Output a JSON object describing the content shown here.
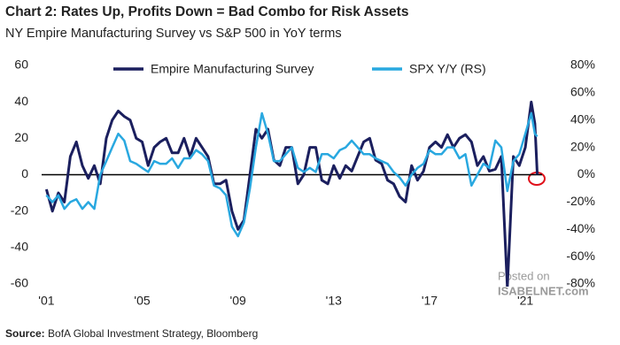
{
  "chart_data": {
    "type": "line",
    "title": "Chart 2: Rates Up, Profits Down = Bad Combo for Risk Assets",
    "subtitle": "NY Empire Manufacturing Survey vs S&P 500 in YoY terms",
    "source_label": "Source:",
    "source": "BofA Global Investment Strategy, Bloomberg",
    "watermark": [
      "Posted on",
      "ISABELNET.com"
    ],
    "legend": "top",
    "x": [
      2001,
      2001.25,
      2001.5,
      2001.75,
      2002,
      2002.25,
      2002.5,
      2002.75,
      2003,
      2003.25,
      2003.5,
      2003.75,
      2004,
      2004.25,
      2004.5,
      2004.75,
      2005,
      2005.25,
      2005.5,
      2005.75,
      2006,
      2006.25,
      2006.5,
      2006.75,
      2007,
      2007.25,
      2007.5,
      2007.75,
      2008,
      2008.25,
      2008.5,
      2008.75,
      2009,
      2009.25,
      2009.5,
      2009.75,
      2010,
      2010.25,
      2010.5,
      2010.75,
      2011,
      2011.25,
      2011.5,
      2011.75,
      2012,
      2012.25,
      2012.5,
      2012.75,
      2013,
      2013.25,
      2013.5,
      2013.75,
      2014,
      2014.25,
      2014.5,
      2014.75,
      2015,
      2015.25,
      2015.5,
      2015.75,
      2016,
      2016.25,
      2016.5,
      2016.75,
      2017,
      2017.25,
      2017.5,
      2017.75,
      2018,
      2018.25,
      2018.5,
      2018.75,
      2019,
      2019.25,
      2019.5,
      2019.75,
      2020,
      2020.25,
      2020.5,
      2020.75,
      2021,
      2021.25,
      2021.4,
      2021.5
    ],
    "xlim": [
      2000.8,
      2021.7
    ],
    "xticks": [
      {
        "value": 2001,
        "label": "'01"
      },
      {
        "value": 2005,
        "label": "'05"
      },
      {
        "value": 2009,
        "label": "'09"
      },
      {
        "value": 2013,
        "label": "'13"
      },
      {
        "value": 2017,
        "label": "'17"
      },
      {
        "value": 2021,
        "label": "'21"
      }
    ],
    "ylim": [
      -60,
      60
    ],
    "yticks": [
      -60,
      -40,
      -20,
      0,
      20,
      40,
      60
    ],
    "y2lim": [
      -80,
      80
    ],
    "y2ticks": [
      {
        "value": -80,
        "label": "-80%"
      },
      {
        "value": -60,
        "label": "-60%"
      },
      {
        "value": -40,
        "label": "-40%"
      },
      {
        "value": -20,
        "label": "-20%"
      },
      {
        "value": 0,
        "label": "0%"
      },
      {
        "value": 20,
        "label": "20%"
      },
      {
        "value": 40,
        "label": "40%"
      },
      {
        "value": 60,
        "label": "60%"
      },
      {
        "value": 80,
        "label": "80%"
      }
    ],
    "series": [
      {
        "name": "Empire Manufacturing Survey",
        "color": "#1b1f5e",
        "values": [
          -8,
          -20,
          -10,
          -15,
          10,
          18,
          5,
          -2,
          5,
          -5,
          20,
          30,
          35,
          32,
          30,
          20,
          18,
          5,
          15,
          18,
          20,
          12,
          12,
          20,
          10,
          20,
          15,
          10,
          -5,
          -5,
          -3,
          -20,
          -30,
          -25,
          0,
          25,
          20,
          25,
          8,
          5,
          15,
          15,
          -5,
          0,
          15,
          15,
          -3,
          -5,
          5,
          -2,
          5,
          2,
          10,
          18,
          20,
          8,
          6,
          -3,
          -5,
          -12,
          -15,
          5,
          -3,
          2,
          15,
          18,
          15,
          22,
          15,
          20,
          22,
          18,
          5,
          10,
          2,
          3,
          10,
          -62,
          10,
          5,
          15,
          40,
          28,
          0
        ]
      },
      {
        "name": "SPX Y/Y (RS)",
        "color": "#29a8e0",
        "axis": "y2",
        "values": [
          -15,
          -20,
          -15,
          -25,
          -20,
          -18,
          -25,
          -20,
          -25,
          0,
          10,
          20,
          30,
          25,
          10,
          8,
          5,
          2,
          10,
          8,
          8,
          12,
          5,
          12,
          12,
          18,
          15,
          10,
          -8,
          -10,
          -15,
          -38,
          -45,
          -35,
          -10,
          20,
          45,
          30,
          10,
          10,
          15,
          20,
          5,
          2,
          5,
          2,
          15,
          15,
          12,
          18,
          20,
          25,
          20,
          15,
          15,
          12,
          10,
          8,
          2,
          -2,
          -8,
          0,
          5,
          8,
          18,
          15,
          15,
          20,
          20,
          12,
          15,
          -8,
          0,
          8,
          5,
          25,
          20,
          -12,
          10,
          15,
          30,
          45,
          30,
          28
        ]
      }
    ]
  }
}
